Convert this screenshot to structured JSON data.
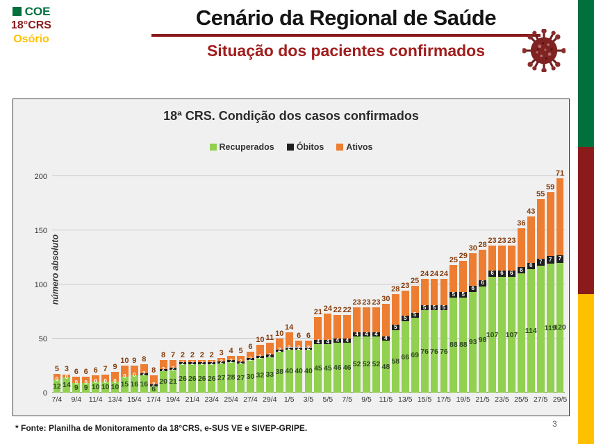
{
  "header": {
    "org": {
      "coe": "COE",
      "crs": "18°CRS",
      "city": "Osório"
    },
    "title": "Cenário da Regional de Saúde",
    "subtitle": "Situação dos pacientes confirmados"
  },
  "footer": {
    "source": "* Fonte: Planilha de Monitoramento da 18°CRS, e-SUS VE e SIVEP-GRIPE.",
    "page": "3"
  },
  "colors": {
    "brand_green": "#00703C",
    "brand_dark_red": "#8B1A1A",
    "brand_gold": "#FFC000",
    "subtitle_red": "#A11D1D",
    "recovered": "#92D050",
    "deaths": "#1F1F1F",
    "active": "#ED7D31"
  },
  "chart_data": {
    "type": "bar",
    "stacked": true,
    "title": "18ª CRS. Condição dos casos confirmados",
    "ylabel": "número absoluto",
    "xlabel": "",
    "ylim": [
      0,
      200
    ],
    "yticks": [
      0,
      50,
      100,
      150,
      200
    ],
    "grid": true,
    "legend_position": "top",
    "legend": [
      {
        "name": "Recuperados",
        "color": "#92D050"
      },
      {
        "name": "Óbitos",
        "color": "#1F1F1F"
      },
      {
        "name": "Ativos",
        "color": "#ED7D31"
      }
    ],
    "categories": [
      "7/4",
      "8/4",
      "9/4",
      "10/4",
      "11/4",
      "12/4",
      "13/4",
      "14/4",
      "15/4",
      "16/4",
      "17/4",
      "18/4",
      "19/4",
      "20/4",
      "21/4",
      "22/4",
      "23/4",
      "24/4",
      "25/4",
      "26/4",
      "27/4",
      "28/4",
      "29/4",
      "30/4",
      "1/5",
      "2/5",
      "3/5",
      "4/5",
      "5/5",
      "6/5",
      "7/5",
      "8/5",
      "9/5",
      "10/5",
      "11/5",
      "12/5",
      "13/5",
      "14/5",
      "15/5",
      "16/5",
      "17/5",
      "18/5",
      "19/5",
      "20/5",
      "21/5",
      "22/5",
      "23/5",
      "24/5",
      "25/5",
      "26/5",
      "27/5",
      "28/5",
      "29/5"
    ],
    "xtick_shown_every": 2,
    "series": [
      {
        "name": "Recuperados",
        "values": [
          12,
          14,
          9,
          9,
          10,
          10,
          10,
          15,
          16,
          16,
          6,
          20,
          21,
          26,
          26,
          26,
          26,
          27,
          28,
          27,
          30,
          32,
          33,
          38,
          40,
          40,
          40,
          45,
          45,
          46,
          46,
          52,
          52,
          52,
          48,
          58,
          66,
          69,
          76,
          76,
          76,
          88,
          88,
          93,
          98,
          107,
          107,
          107,
          110,
          114,
          117,
          119,
          120
        ],
        "hidden_label_indices": [
          46,
          48,
          50
        ]
      },
      {
        "name": "Óbitos",
        "values": [
          0,
          0,
          0,
          0,
          0,
          0,
          0,
          0,
          0,
          2,
          2,
          2,
          2,
          2,
          2,
          2,
          2,
          2,
          2,
          2,
          2,
          2,
          2,
          2,
          2,
          2,
          2,
          4,
          4,
          4,
          4,
          4,
          4,
          4,
          4,
          5,
          5,
          5,
          5,
          5,
          5,
          5,
          5,
          6,
          6,
          6,
          6,
          6,
          6,
          6,
          7,
          7,
          7
        ],
        "hidden_label_indices": []
      },
      {
        "name": "Ativos",
        "values": [
          5,
          3,
          6,
          6,
          6,
          7,
          9,
          10,
          9,
          8,
          8,
          8,
          7,
          2,
          2,
          2,
          2,
          3,
          4,
          5,
          6,
          10,
          11,
          10,
          14,
          6,
          6,
          21,
          24,
          22,
          22,
          23,
          23,
          23,
          30,
          28,
          23,
          25,
          24,
          24,
          24,
          25,
          29,
          30,
          28,
          23,
          23,
          23,
          36,
          43,
          55,
          59,
          71
        ],
        "hidden_label_indices": []
      }
    ]
  }
}
